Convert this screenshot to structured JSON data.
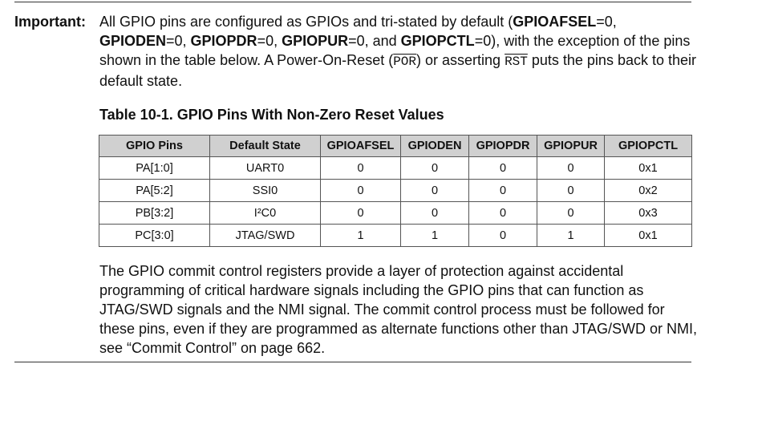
{
  "note": {
    "label": "Important:",
    "segments": [
      {
        "t": "All GPIO pins are configured as GPIOs and tri-stated by default (",
        "s": "n"
      },
      {
        "t": "GPIOAFSEL",
        "s": "b"
      },
      {
        "t": "=0, ",
        "s": "n"
      },
      {
        "t": "GPIODEN",
        "s": "b"
      },
      {
        "t": "=0, ",
        "s": "n"
      },
      {
        "t": "GPIOPDR",
        "s": "b"
      },
      {
        "t": "=0, ",
        "s": "n"
      },
      {
        "t": "GPIOPUR",
        "s": "b"
      },
      {
        "t": "=0, and ",
        "s": "n"
      },
      {
        "t": "GPIOPCTL",
        "s": "b"
      },
      {
        "t": "=0), with the exception of the pins shown in the table below. A Power-On-Reset (",
        "s": "n"
      },
      {
        "t": "POR",
        "s": "m"
      },
      {
        "t": ") or asserting ",
        "s": "n"
      },
      {
        "t": "RST",
        "s": "m"
      },
      {
        "t": " puts the pins back to their default state.",
        "s": "n"
      }
    ]
  },
  "table": {
    "title": "Table 10-1. GPIO Pins With Non-Zero Reset Values",
    "headers": [
      "GPIO Pins",
      "Default State",
      "GPIOAFSEL",
      "GPIODEN",
      "GPIOPDR",
      "GPIOPUR",
      "GPIOPCTL"
    ],
    "rows": [
      [
        "PA[1:0]",
        "UART0",
        "0",
        "0",
        "0",
        "0",
        "0x1"
      ],
      [
        "PA[5:2]",
        "SSI0",
        "0",
        "0",
        "0",
        "0",
        "0x2"
      ],
      [
        "PB[3:2]",
        "I²C0",
        "0",
        "0",
        "0",
        "0",
        "0x3"
      ],
      [
        "PC[3:0]",
        "JTAG/SWD",
        "1",
        "1",
        "0",
        "1",
        "0x1"
      ]
    ]
  },
  "paragraph": "The GPIO commit control registers provide a layer of protection against accidental programming of critical hardware signals including the GPIO pins that can function as JTAG/SWD signals and the NMI signal. The commit control process must be followed for these pins, even if they are programmed as alternate functions other than JTAG/SWD or NMI, see “Commit Control” on page 662."
}
